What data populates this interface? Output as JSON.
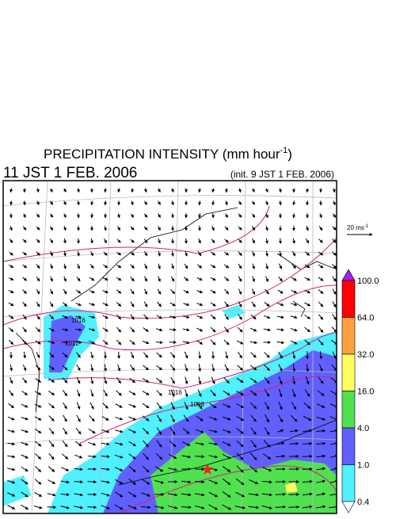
{
  "title": {
    "text": "PRECIPITATION INTENSITY (mm hour",
    "superscript": "-1",
    "close": ")"
  },
  "valid_time": "11 JST 1 FEB. 2006",
  "init_time": "(init. 9 JST 1 FEB. 2006)",
  "vector_scale": {
    "text": "20 ms",
    "superscript": "-1"
  },
  "colorbar": {
    "labels": [
      "100.0",
      "64.0",
      "32.0",
      "16.0",
      "4.0",
      "1.0",
      "0.4"
    ],
    "colors": [
      "#a020f0",
      "#ff0000",
      "#ffa040",
      "#ffff60",
      "#50e050",
      "#6060ff",
      "#50f0ff",
      "#ffffff"
    ]
  },
  "isobar_labels": [
    "1016",
    "1012",
    "1016",
    "1008"
  ]
}
